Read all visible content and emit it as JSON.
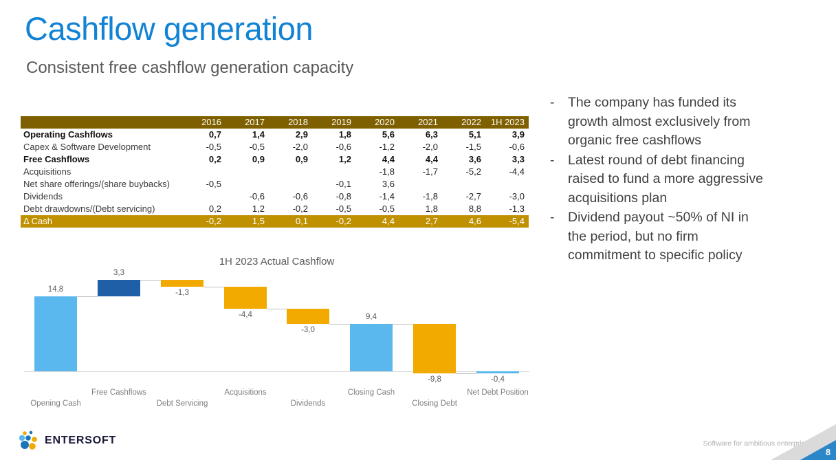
{
  "header": {
    "title": "Cashflow generation",
    "subtitle": "Consistent free cashflow generation capacity"
  },
  "table": {
    "columns": [
      "2016",
      "2017",
      "2018",
      "2019",
      "2020",
      "2021",
      "2022",
      "1H 2023"
    ],
    "rows": [
      {
        "label": "Operating Cashflows",
        "bold": true,
        "values": [
          "0,7",
          "1,4",
          "2,9",
          "1,8",
          "5,6",
          "6,3",
          "5,1",
          "3,9"
        ]
      },
      {
        "label": "Capex & Software Development",
        "values": [
          "-0,5",
          "-0,5",
          "-2,0",
          "-0,6",
          "-1,2",
          "-2,0",
          "-1,5",
          "-0,6"
        ]
      },
      {
        "label": "Free Cashflows",
        "bold": true,
        "values": [
          "0,2",
          "0,9",
          "0,9",
          "1,2",
          "4,4",
          "4,4",
          "3,6",
          "3,3"
        ]
      },
      {
        "label": "Acquisitions",
        "values": [
          "",
          "",
          "",
          "",
          "-1,8",
          "-1,7",
          "-5,2",
          "-4,4"
        ]
      },
      {
        "label": "Net share offerings/(share buybacks)",
        "values": [
          "-0,5",
          "",
          "",
          "-0,1",
          "3,6",
          "",
          "",
          ""
        ]
      },
      {
        "label": "Dividends",
        "values": [
          "",
          "-0,6",
          "-0,6",
          "-0,8",
          "-1,4",
          "-1,8",
          "-2,7",
          "-3,0"
        ]
      },
      {
        "label": "Debt drawdowns/(Debt servicing)",
        "values": [
          "0,2",
          "1,2",
          "-0,2",
          "-0,5",
          "-0,5",
          "1,8",
          "8,8",
          "-1,3"
        ]
      },
      {
        "label": "Δ Cash",
        "highlight": true,
        "values": [
          "-0,2",
          "1,5",
          "0,1",
          "-0,2",
          "4,4",
          "2,7",
          "4,6",
          "-5,4"
        ]
      }
    ]
  },
  "notes": [
    "The company has funded its growth almost exclusively from organic free cashflows",
    "Latest round of debt financing raised to fund a more aggressive acquisitions plan",
    "Dividend payout ~50% of NI in the period, but no firm commitment to specific policy"
  ],
  "chart_data": {
    "type": "waterfall",
    "title": "1H 2023 Actual Cashflow",
    "categories": [
      "Opening Cash",
      "Free Cashflows",
      "Debt Servicing",
      "Acquisitions",
      "Dividends",
      "Closing Cash",
      "Closing Debt",
      "Net Debt Position"
    ],
    "values": [
      14.8,
      3.3,
      -1.3,
      -4.4,
      -3.0,
      9.4,
      -9.8,
      -0.4
    ],
    "labels": [
      "14,8",
      "3,3",
      "-1,3",
      "-4,4",
      "-3,0",
      "9,4",
      "-9,8",
      "-0,4"
    ],
    "bar_kind": [
      "total",
      "delta",
      "delta",
      "delta",
      "delta",
      "total",
      "delta",
      "total"
    ],
    "bar_colors": [
      "#5BB8EE",
      "#1F5FA8",
      "#F2A900",
      "#F2A900",
      "#F2A900",
      "#5BB8EE",
      "#F2A900",
      "#5BB8EE"
    ],
    "ylim": [
      -1,
      19
    ],
    "baseline": 0,
    "legend": "none",
    "grid": "off"
  },
  "footer": {
    "brand": "ENTERSOFT",
    "tagline": "Software for ambitious enterprises",
    "page_number": "8"
  },
  "colors": {
    "title_blue": "#1282D4",
    "table_header_bg": "#7F6000",
    "table_highlight_bg": "#BF9000",
    "bar_light_blue": "#5BB8EE",
    "bar_dark_blue": "#1F5FA8",
    "bar_orange": "#F2A900"
  }
}
